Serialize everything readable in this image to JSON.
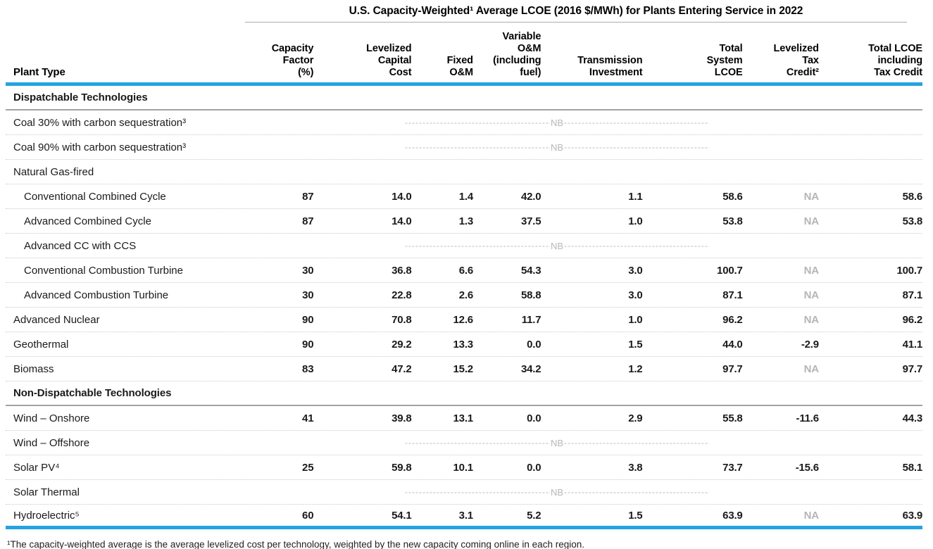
{
  "title": "U.S. Capacity-Weighted¹ Average LCOE (2016 $/MWh) for Plants Entering Service in 2022",
  "columns": [
    {
      "key": "plant-type",
      "label": "Plant Type"
    },
    {
      "key": "capacity-factor",
      "label": "Capacity\nFactor\n(%)"
    },
    {
      "key": "levelized-capital-cost",
      "label": "Levelized\nCapital\nCost"
    },
    {
      "key": "fixed-om",
      "label": "Fixed\nO&M"
    },
    {
      "key": "variable-om",
      "label": "Variable\nO&M\n(including\nfuel)"
    },
    {
      "key": "transmission-investment",
      "label": "Transmission\nInvestment"
    },
    {
      "key": "total-system-lcoe",
      "label": "Total\nSystem\nLCOE"
    },
    {
      "key": "levelized-tax-credit",
      "label": "Levelized\nTax\nCredit²"
    },
    {
      "key": "total-lcoe-incl-tax-credit",
      "label": "Total LCOE\nincluding\nTax Credit"
    }
  ],
  "nb": {
    "label": "NB",
    "dash_run": "--------------------------------------------------------------------------------"
  },
  "rows": [
    {
      "type": "section",
      "label": "Dispatchable Technologies"
    },
    {
      "type": "nb",
      "label": "Coal 30% with carbon sequestration³",
      "indent": false
    },
    {
      "type": "nb",
      "label": "Coal 90% with carbon sequestration³",
      "indent": false
    },
    {
      "type": "label",
      "label": "Natural Gas-fired"
    },
    {
      "type": "data",
      "label": "Conventional Combined Cycle",
      "indent": true,
      "values": [
        "87",
        "14.0",
        "1.4",
        "42.0",
        "1.1",
        "58.6",
        "NA",
        "58.6"
      ]
    },
    {
      "type": "data",
      "label": "Advanced Combined Cycle",
      "indent": true,
      "values": [
        "87",
        "14.0",
        "1.3",
        "37.5",
        "1.0",
        "53.8",
        "NA",
        "53.8"
      ]
    },
    {
      "type": "nb",
      "label": "Advanced CC with CCS",
      "indent": true
    },
    {
      "type": "data",
      "label": "Conventional Combustion Turbine",
      "indent": true,
      "values": [
        "30",
        "36.8",
        "6.6",
        "54.3",
        "3.0",
        "100.7",
        "NA",
        "100.7"
      ]
    },
    {
      "type": "data",
      "label": "Advanced Combustion Turbine",
      "indent": true,
      "values": [
        "30",
        "22.8",
        "2.6",
        "58.8",
        "3.0",
        "87.1",
        "NA",
        "87.1"
      ]
    },
    {
      "type": "data",
      "label": "Advanced Nuclear",
      "indent": false,
      "values": [
        "90",
        "70.8",
        "12.6",
        "11.7",
        "1.0",
        "96.2",
        "NA",
        "96.2"
      ]
    },
    {
      "type": "data",
      "label": "Geothermal",
      "indent": false,
      "values": [
        "90",
        "29.2",
        "13.3",
        "0.0",
        "1.5",
        "44.0",
        "-2.9",
        "41.1"
      ]
    },
    {
      "type": "data",
      "label": "Biomass",
      "indent": false,
      "values": [
        "83",
        "47.2",
        "15.2",
        "34.2",
        "1.2",
        "97.7",
        "NA",
        "97.7"
      ]
    },
    {
      "type": "section",
      "label": "Non-Dispatchable Technologies"
    },
    {
      "type": "data",
      "label": "Wind – Onshore",
      "indent": false,
      "values": [
        "41",
        "39.8",
        "13.1",
        "0.0",
        "2.9",
        "55.8",
        "-11.6",
        "44.3"
      ]
    },
    {
      "type": "nb",
      "label": "Wind – Offshore",
      "indent": false
    },
    {
      "type": "data",
      "label": "Solar PV⁴",
      "indent": false,
      "values": [
        "25",
        "59.8",
        "10.1",
        "0.0",
        "3.8",
        "73.7",
        "-15.6",
        "58.1"
      ]
    },
    {
      "type": "nb",
      "label": "Solar Thermal",
      "indent": false
    },
    {
      "type": "data",
      "label": "Hydroelectric⁵",
      "indent": false,
      "values": [
        "60",
        "54.1",
        "3.1",
        "5.2",
        "1.5",
        "63.9",
        "NA",
        "63.9"
      ]
    }
  ],
  "na_text": "NA",
  "footnote": "¹The capacity-weighted average is the average levelized cost per technology, weighted by the new capacity coming online in each region.",
  "colors": {
    "accent_blue": "#25a3df",
    "na_gray": "#b5b5b5",
    "dotted_rule": "#c9c9c9",
    "section_rule": "#a3a3a3"
  }
}
